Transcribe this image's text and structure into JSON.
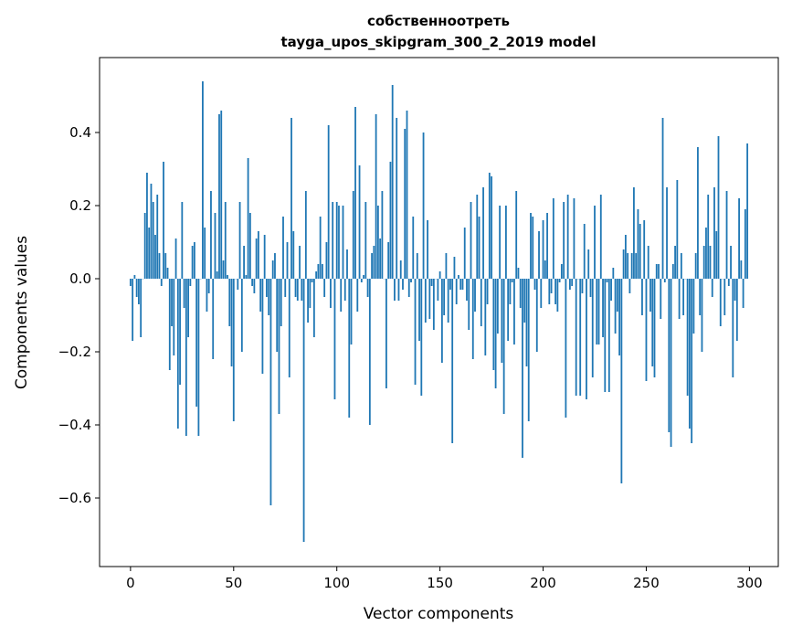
{
  "chart_data": {
    "type": "bar",
    "title": "собственноотреть",
    "subtitle": "tayga_upos_skipgram_300_2_2019 model",
    "xlabel": "Vector components",
    "ylabel": "Components values",
    "xlim": [
      -15,
      314
    ],
    "ylim": [
      -0.7875,
      0.605
    ],
    "xticks": [
      0,
      50,
      100,
      150,
      200,
      250,
      300
    ],
    "xtick_labels": [
      "0",
      "50",
      "100",
      "150",
      "200",
      "250",
      "300"
    ],
    "yticks": [
      -0.6,
      -0.4,
      -0.2,
      0.0,
      0.2,
      0.4
    ],
    "ytick_labels": [
      "−0.6",
      "−0.4",
      "−0.2",
      "0.0",
      "0.2",
      "0.4"
    ],
    "grid": false,
    "bar_color": "#1f77b4",
    "values": [
      -0.02,
      -0.17,
      0.01,
      -0.05,
      -0.07,
      -0.16,
      0.0,
      0.18,
      0.29,
      0.14,
      0.26,
      0.21,
      0.12,
      0.23,
      0.07,
      -0.02,
      0.32,
      0.07,
      0.03,
      -0.25,
      -0.13,
      -0.21,
      0.11,
      -0.41,
      -0.29,
      0.21,
      -0.08,
      -0.43,
      -0.16,
      -0.02,
      0.09,
      0.1,
      -0.35,
      -0.43,
      0.0,
      0.54,
      0.14,
      -0.09,
      -0.04,
      0.24,
      -0.22,
      0.18,
      0.02,
      0.45,
      0.46,
      0.05,
      0.21,
      0.01,
      -0.13,
      -0.24,
      -0.39,
      0.0,
      -0.03,
      0.21,
      -0.2,
      0.09,
      0.01,
      0.33,
      0.18,
      -0.02,
      -0.04,
      0.11,
      0.13,
      -0.09,
      -0.26,
      0.12,
      -0.05,
      -0.1,
      -0.62,
      0.05,
      0.07,
      -0.2,
      -0.37,
      -0.13,
      0.17,
      -0.05,
      0.1,
      -0.27,
      0.44,
      0.13,
      -0.05,
      -0.06,
      0.09,
      -0.06,
      -0.72,
      0.24,
      -0.12,
      -0.08,
      -0.01,
      -0.16,
      0.02,
      0.04,
      0.17,
      0.04,
      -0.05,
      0.1,
      0.42,
      -0.08,
      0.21,
      -0.33,
      0.21,
      0.2,
      -0.09,
      0.2,
      -0.06,
      0.08,
      -0.38,
      -0.18,
      0.24,
      0.47,
      -0.09,
      0.31,
      -0.01,
      0.01,
      0.21,
      -0.05,
      -0.4,
      0.07,
      0.09,
      0.45,
      0.2,
      0.11,
      0.24,
      0.0,
      -0.3,
      0.1,
      0.32,
      0.53,
      -0.06,
      0.44,
      -0.06,
      0.05,
      -0.03,
      0.41,
      0.46,
      -0.05,
      -0.01,
      0.17,
      -0.29,
      0.07,
      -0.17,
      -0.32,
      0.4,
      -0.12,
      0.16,
      -0.11,
      -0.02,
      -0.14,
      0.0,
      -0.06,
      0.02,
      -0.23,
      -0.1,
      0.07,
      -0.12,
      -0.03,
      -0.45,
      0.06,
      -0.07,
      0.01,
      -0.03,
      -0.03,
      0.14,
      -0.06,
      -0.14,
      0.21,
      -0.22,
      -0.09,
      0.23,
      0.17,
      -0.13,
      0.25,
      -0.21,
      -0.07,
      0.29,
      0.28,
      -0.25,
      -0.3,
      -0.15,
      0.2,
      -0.23,
      -0.37,
      0.2,
      -0.17,
      -0.07,
      -0.01,
      -0.18,
      0.24,
      0.03,
      -0.08,
      -0.49,
      -0.12,
      -0.24,
      -0.39,
      0.18,
      0.17,
      -0.03,
      -0.2,
      0.13,
      -0.08,
      0.16,
      0.05,
      0.18,
      -0.07,
      -0.04,
      0.22,
      -0.07,
      -0.09,
      -0.01,
      0.04,
      0.21,
      -0.38,
      0.23,
      -0.03,
      -0.02,
      0.22,
      -0.32,
      0.0,
      -0.32,
      -0.04,
      0.15,
      -0.33,
      0.08,
      -0.05,
      -0.27,
      0.2,
      -0.18,
      -0.18,
      0.23,
      -0.16,
      -0.31,
      -0.01,
      -0.31,
      -0.06,
      0.03,
      -0.15,
      -0.09,
      -0.21,
      -0.56,
      0.08,
      0.12,
      0.07,
      -0.04,
      0.07,
      0.25,
      0.07,
      0.19,
      0.15,
      -0.1,
      0.16,
      -0.28,
      0.09,
      -0.09,
      -0.24,
      -0.27,
      0.04,
      0.04,
      -0.11,
      0.44,
      -0.01,
      0.25,
      -0.42,
      -0.46,
      0.04,
      0.09,
      0.27,
      -0.11,
      0.07,
      -0.1,
      0.0,
      -0.32,
      -0.41,
      -0.45,
      -0.15,
      0.07,
      0.36,
      -0.1,
      -0.2,
      0.09,
      0.14,
      0.23,
      0.09,
      -0.05,
      0.25,
      0.13,
      0.39,
      -0.13,
      0.0,
      -0.1,
      0.24,
      -0.02,
      0.09,
      -0.27,
      -0.06,
      -0.17,
      0.22,
      0.05,
      -0.08,
      0.19,
      0.37
    ]
  }
}
